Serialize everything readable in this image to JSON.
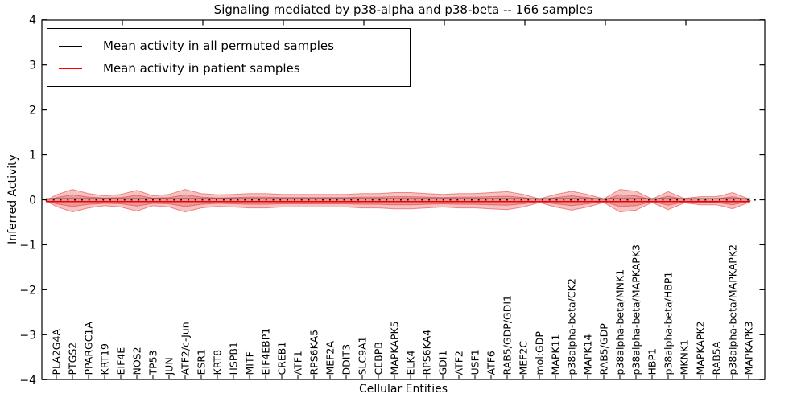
{
  "figure": {
    "title": "Signaling mediated by p38-alpha and p38-beta -- 166 samples",
    "xlabel": "Cellular Entities",
    "ylabel": "Inferred Activity"
  },
  "legend": {
    "items": [
      {
        "label": "Mean activity in all permuted samples",
        "color": "#000000"
      },
      {
        "label": "Mean activity in patient samples",
        "color": "#ff0000"
      }
    ]
  },
  "chart_data": {
    "type": "area",
    "title": "Signaling mediated by p38-alpha and p38-beta -- 166 samples",
    "xlabel": "Cellular Entities",
    "ylabel": "Inferred Activity",
    "ylim": [
      -4,
      4
    ],
    "yticks": [
      -4,
      -3,
      -2,
      -1,
      0,
      1,
      2,
      3,
      4
    ],
    "grid": false,
    "legend_position": "upper left",
    "categories": [
      "PLA2G4A",
      "PTGS2",
      "PPARGC1A",
      "KRT19",
      "EIF4E",
      "NOS2",
      "TP53",
      "JUN",
      "ATF2/c-Jun",
      "ESR1",
      "KRT8",
      "HSPB1",
      "MITF",
      "EIF4EBP1",
      "CREB1",
      "ATF1",
      "RPS6KA5",
      "MEF2A",
      "DDIT3",
      "SLC9A1",
      "CEBPB",
      "MAPKAPK5",
      "ELK4",
      "RPS6KA4",
      "GDI1",
      "ATF2",
      "USF1",
      "ATF6",
      "RAB5/GDP/GDI1",
      "MEF2C",
      "mol:GDP",
      "MAPK11",
      "p38alpha-beta/CK2",
      "MAPK14",
      "RAB5/GDP",
      "p38alpha-beta/MNK1",
      "p38alpha-beta/MAPKAPK3",
      "HBP1",
      "p38alpha-beta/HBP1",
      "MKNK1",
      "MAPKAPK2",
      "RAB5A",
      "p38alpha-beta/MAPKAPK2",
      "MAPKAPK3"
    ],
    "series": [
      {
        "name": "Mean activity in all permuted samples",
        "color": "#000000",
        "style": "solid",
        "y": 0.02
      },
      {
        "name": "Mean activity in patient samples",
        "color": "#f00000",
        "style": "solid",
        "y": -0.04
      },
      {
        "name": "zero baseline",
        "color": "#000000",
        "style": "dotted",
        "y": 0.0
      }
    ],
    "band_center": -0.02,
    "band_outer_halfwidth": [
      0.13,
      0.25,
      0.16,
      0.11,
      0.14,
      0.23,
      0.11,
      0.14,
      0.25,
      0.16,
      0.13,
      0.14,
      0.16,
      0.16,
      0.14,
      0.14,
      0.14,
      0.14,
      0.14,
      0.16,
      0.16,
      0.18,
      0.18,
      0.16,
      0.14,
      0.16,
      0.16,
      0.18,
      0.2,
      0.14,
      0.04,
      0.14,
      0.21,
      0.14,
      0.04,
      0.25,
      0.21,
      0.04,
      0.2,
      0.05,
      0.09,
      0.09,
      0.18,
      0.04
    ],
    "band_inner_halfwidth": [
      0.07,
      0.13,
      0.08,
      0.06,
      0.07,
      0.12,
      0.06,
      0.07,
      0.13,
      0.08,
      0.06,
      0.07,
      0.08,
      0.08,
      0.07,
      0.07,
      0.07,
      0.07,
      0.07,
      0.08,
      0.08,
      0.09,
      0.09,
      0.08,
      0.07,
      0.08,
      0.08,
      0.09,
      0.1,
      0.07,
      0.02,
      0.07,
      0.11,
      0.07,
      0.02,
      0.13,
      0.11,
      0.02,
      0.1,
      0.03,
      0.04,
      0.04,
      0.09,
      0.02
    ],
    "colors": {
      "band_fill": "rgba(224,40,40,0.28)",
      "band_edge": "rgba(224,40,40,0.5)",
      "patient_line": "#f00000",
      "permuted_line": "#000000"
    },
    "x_major_tick_every": 5
  }
}
